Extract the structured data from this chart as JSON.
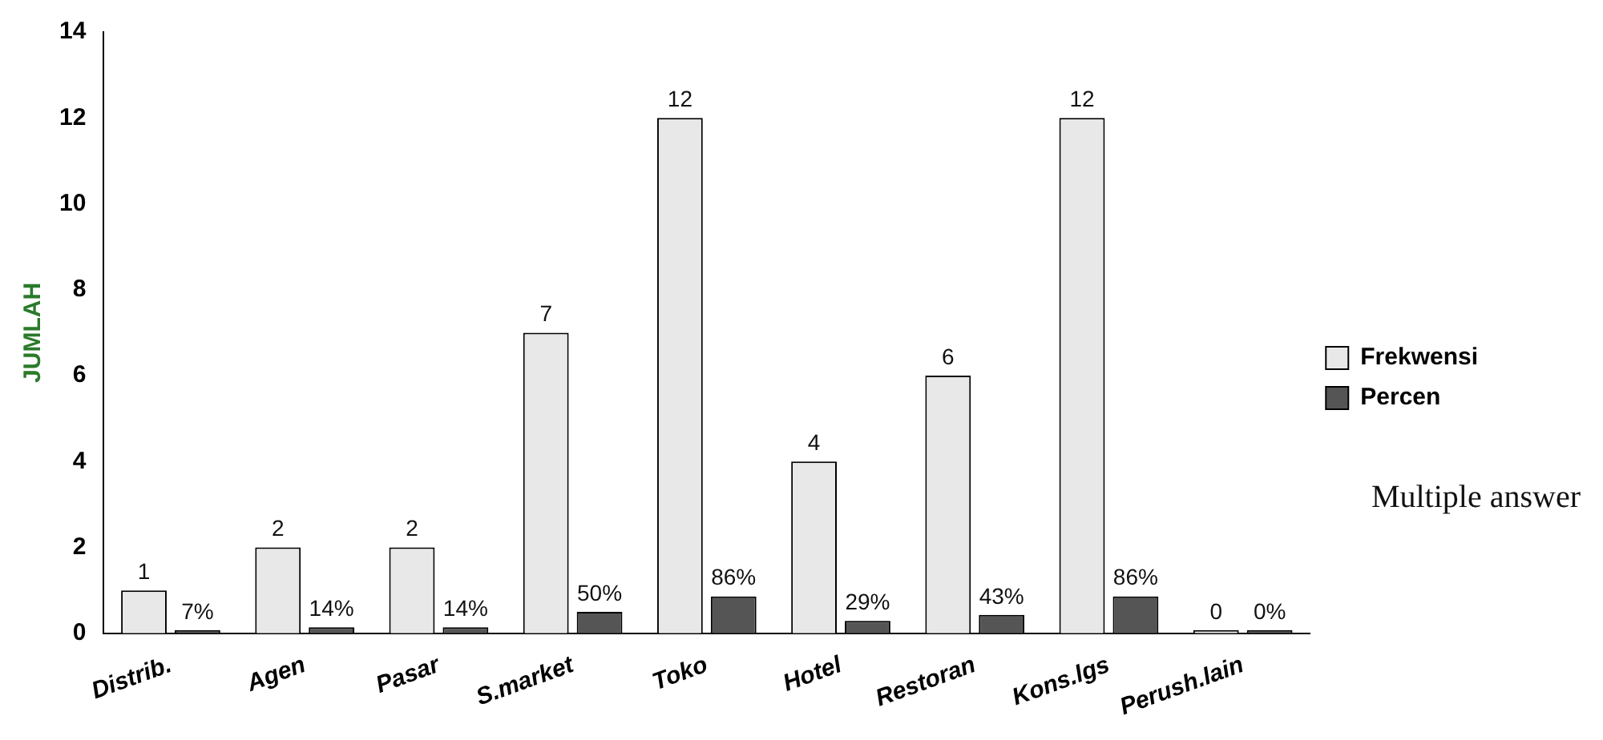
{
  "chart_data": {
    "type": "bar",
    "ylabel": "JUMLAH",
    "categories": [
      "Distrib.",
      "Agen",
      "Pasar",
      "S.market",
      "Toko",
      "Hotel",
      "Restoran",
      "Kons.lgs",
      "Perush.lain"
    ],
    "series": [
      {
        "name": "Frekwensi",
        "color": "#e8e8e8",
        "values": [
          1,
          2,
          2,
          7,
          12,
          4,
          6,
          12,
          0
        ],
        "value_labels": [
          "1",
          "2",
          "2",
          "7",
          "12",
          "4",
          "6",
          "12",
          "0"
        ]
      },
      {
        "name": "Percen",
        "color": "#555555",
        "values": [
          0.07,
          0.14,
          0.14,
          0.5,
          0.86,
          0.29,
          0.43,
          0.86,
          0
        ],
        "value_labels": [
          "7%",
          "14%",
          "14%",
          "50%",
          "86%",
          "29%",
          "43%",
          "86%",
          "0%"
        ]
      }
    ],
    "ylim": [
      0,
      14
    ],
    "yticks": [
      0,
      2,
      4,
      6,
      8,
      10,
      12,
      14
    ],
    "grid": false,
    "legend": "right",
    "annotations": [
      "Multiple answer"
    ]
  }
}
